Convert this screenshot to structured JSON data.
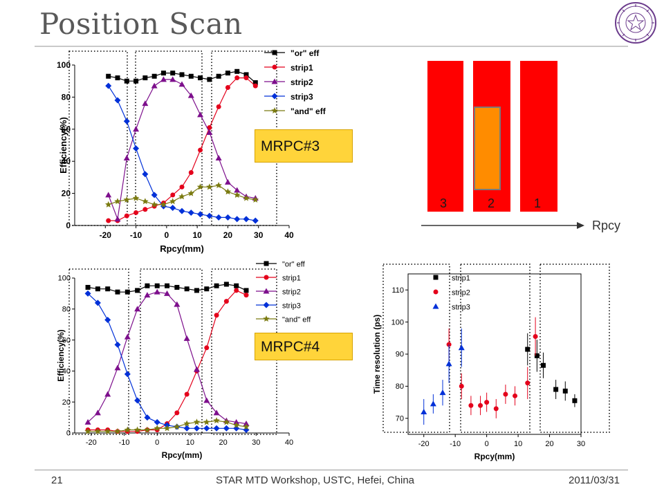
{
  "slide": {
    "title": "Position Scan",
    "footer_page": "21",
    "footer_center": "STAR MTD Workshop, USTC, Hefei, China",
    "footer_date": "2011/03/31",
    "label_mrpc3": "MRPC#3",
    "label_mrpc4": "MRPC#4"
  },
  "diagram": {
    "strip_labels": [
      "3",
      "2",
      "1"
    ],
    "axis_label": "Rpcy",
    "strip_color": "#ff0000",
    "pad_color": "#ff8c00"
  },
  "colors": {
    "or": "#000000",
    "strip1": "#e4001b",
    "strip2": "#7d0f8c",
    "strip3": "#0030d8",
    "and": "#7a7a10"
  },
  "chart_data": [
    {
      "type": "line",
      "id": "mrpc3",
      "xlabel": "Rpcy(mm)",
      "ylabel": "Efficiency(%)",
      "xlim": [
        -30,
        40
      ],
      "ylim": [
        0,
        100
      ],
      "xticks": [
        -20,
        -10,
        0,
        10,
        20,
        30,
        40
      ],
      "yticks": [
        0,
        20,
        40,
        60,
        80,
        100
      ],
      "legend_position": "top-right",
      "series": [
        {
          "name": "\"or\" eff",
          "marker": "square",
          "color": "#000000",
          "x": [
            -19,
            -16,
            -13,
            -10,
            -7,
            -4,
            -1,
            2,
            5,
            8,
            11,
            14,
            17,
            20,
            23,
            26,
            29
          ],
          "y": [
            93,
            92,
            90,
            90,
            92,
            93,
            95,
            95,
            94,
            93,
            92,
            91,
            93,
            95,
            96,
            94,
            89
          ]
        },
        {
          "name": "strip1",
          "marker": "circle",
          "color": "#e4001b",
          "x": [
            -19,
            -16,
            -13,
            -10,
            -7,
            -4,
            -1,
            2,
            5,
            8,
            11,
            14,
            17,
            20,
            23,
            26,
            29
          ],
          "y": [
            3,
            3,
            6,
            8,
            10,
            12,
            14,
            19,
            24,
            33,
            47,
            61,
            74,
            86,
            92,
            92,
            87
          ]
        },
        {
          "name": "strip2",
          "marker": "triangle",
          "color": "#7d0f8c",
          "x": [
            -19,
            -16,
            -13,
            -10,
            -7,
            -4,
            -1,
            2,
            5,
            8,
            11,
            14,
            17,
            20,
            23,
            26,
            29
          ],
          "y": [
            19,
            4,
            42,
            60,
            76,
            87,
            91,
            91,
            88,
            81,
            69,
            58,
            42,
            27,
            22,
            18,
            17
          ]
        },
        {
          "name": "strip3",
          "marker": "diamond",
          "color": "#0030d8",
          "x": [
            -19,
            -16,
            -13,
            -10,
            -7,
            -4,
            -1,
            2,
            5,
            8,
            11,
            14,
            17,
            20,
            23,
            26,
            29
          ],
          "y": [
            87,
            78,
            65,
            48,
            32,
            19,
            12,
            11,
            9,
            8,
            7,
            6,
            5,
            5,
            4,
            4,
            3
          ]
        },
        {
          "name": "\"and\" eff",
          "marker": "star",
          "color": "#7a7a10",
          "x": [
            -19,
            -16,
            -13,
            -10,
            -7,
            -4,
            -1,
            2,
            5,
            8,
            11,
            14,
            17,
            20,
            23,
            26,
            29
          ],
          "y": [
            13,
            15,
            16,
            17,
            15,
            13,
            13,
            15,
            18,
            20,
            24,
            24,
            25,
            21,
            19,
            17,
            16
          ]
        }
      ]
    },
    {
      "type": "line",
      "id": "mrpc4",
      "xlabel": "Rpcy(mm)",
      "ylabel": "Efficiency(%)",
      "xlim": [
        -25,
        40
      ],
      "ylim": [
        0,
        100
      ],
      "xticks": [
        -20,
        -10,
        0,
        10,
        20,
        30,
        40
      ],
      "yticks": [
        0,
        20,
        40,
        60,
        80,
        100
      ],
      "legend_position": "top-right",
      "series": [
        {
          "name": "\"or\" eff",
          "marker": "square",
          "color": "#000000",
          "x": [
            -21,
            -18,
            -15,
            -12,
            -9,
            -6,
            -3,
            0,
            3,
            6,
            9,
            12,
            15,
            18,
            21,
            24,
            27
          ],
          "y": [
            94,
            93,
            93,
            91,
            91,
            92,
            95,
            95,
            95,
            94,
            93,
            92,
            93,
            95,
            96,
            95,
            92
          ]
        },
        {
          "name": "strip1",
          "marker": "circle",
          "color": "#e4001b",
          "x": [
            -21,
            -18,
            -15,
            -12,
            -9,
            -6,
            -3,
            0,
            3,
            6,
            9,
            12,
            15,
            18,
            21,
            24,
            27
          ],
          "y": [
            2,
            2,
            2,
            1,
            1,
            1,
            2,
            2,
            6,
            13,
            25,
            40,
            55,
            76,
            85,
            92,
            89
          ]
        },
        {
          "name": "strip2",
          "marker": "triangle",
          "color": "#7d0f8c",
          "x": [
            -21,
            -18,
            -15,
            -12,
            -9,
            -6,
            -3,
            0,
            3,
            6,
            9,
            12,
            15,
            18,
            21,
            24,
            27
          ],
          "y": [
            7,
            13,
            25,
            42,
            62,
            80,
            89,
            91,
            90,
            83,
            61,
            41,
            21,
            13,
            8,
            7,
            6
          ]
        },
        {
          "name": "strip3",
          "marker": "diamond",
          "color": "#0030d8",
          "x": [
            -21,
            -18,
            -15,
            -12,
            -9,
            -6,
            -3,
            0,
            3,
            6,
            9,
            12,
            15,
            18,
            21,
            24,
            27
          ],
          "y": [
            90,
            84,
            73,
            57,
            38,
            21,
            10,
            7,
            5,
            4,
            3,
            3,
            3,
            3,
            3,
            3,
            2
          ]
        },
        {
          "name": "\"and\" eff",
          "marker": "star",
          "color": "#7a7a10",
          "x": [
            -21,
            -18,
            -15,
            -12,
            -9,
            -6,
            -3,
            0,
            3,
            6,
            9,
            12,
            15,
            18,
            21,
            24,
            27
          ],
          "y": [
            1,
            1,
            1,
            1,
            2,
            2,
            2,
            3,
            3,
            4,
            6,
            7,
            7,
            8,
            7,
            5,
            4
          ]
        }
      ]
    },
    {
      "type": "scatter",
      "id": "time-resolution",
      "xlabel": "Rpcy(mm)",
      "ylabel": "Time resolution (ps)",
      "xlim": [
        -25,
        30
      ],
      "ylim": [
        65,
        115
      ],
      "xticks": [
        -20,
        -10,
        0,
        10,
        20,
        30
      ],
      "yticks": [
        70,
        80,
        90,
        100,
        110
      ],
      "legend_position": "top-left",
      "series": [
        {
          "name": "strip1",
          "marker": "square",
          "color": "#000000",
          "x": [
            13,
            16,
            18,
            22,
            25,
            28
          ],
          "y": [
            91.5,
            89.5,
            86.5,
            79,
            78.5,
            75.5
          ],
          "err": [
            5,
            5,
            4,
            3,
            3,
            2
          ]
        },
        {
          "name": "strip2",
          "marker": "circle",
          "color": "#e4001b",
          "x": [
            -12,
            -8,
            -5,
            -2,
            0,
            3,
            6,
            9,
            13,
            15.5
          ],
          "y": [
            93,
            80,
            74,
            74,
            75,
            73,
            77.5,
            77,
            81,
            95.5
          ],
          "err": [
            5,
            4,
            3,
            3,
            3,
            3,
            3,
            3,
            5,
            6
          ]
        },
        {
          "name": "strip3",
          "marker": "triangle",
          "color": "#0030d8",
          "x": [
            -20,
            -17,
            -14,
            -12,
            -8
          ],
          "y": [
            72,
            74.5,
            78,
            87,
            92
          ],
          "err": [
            4,
            3,
            4,
            6,
            6
          ]
        }
      ]
    }
  ]
}
